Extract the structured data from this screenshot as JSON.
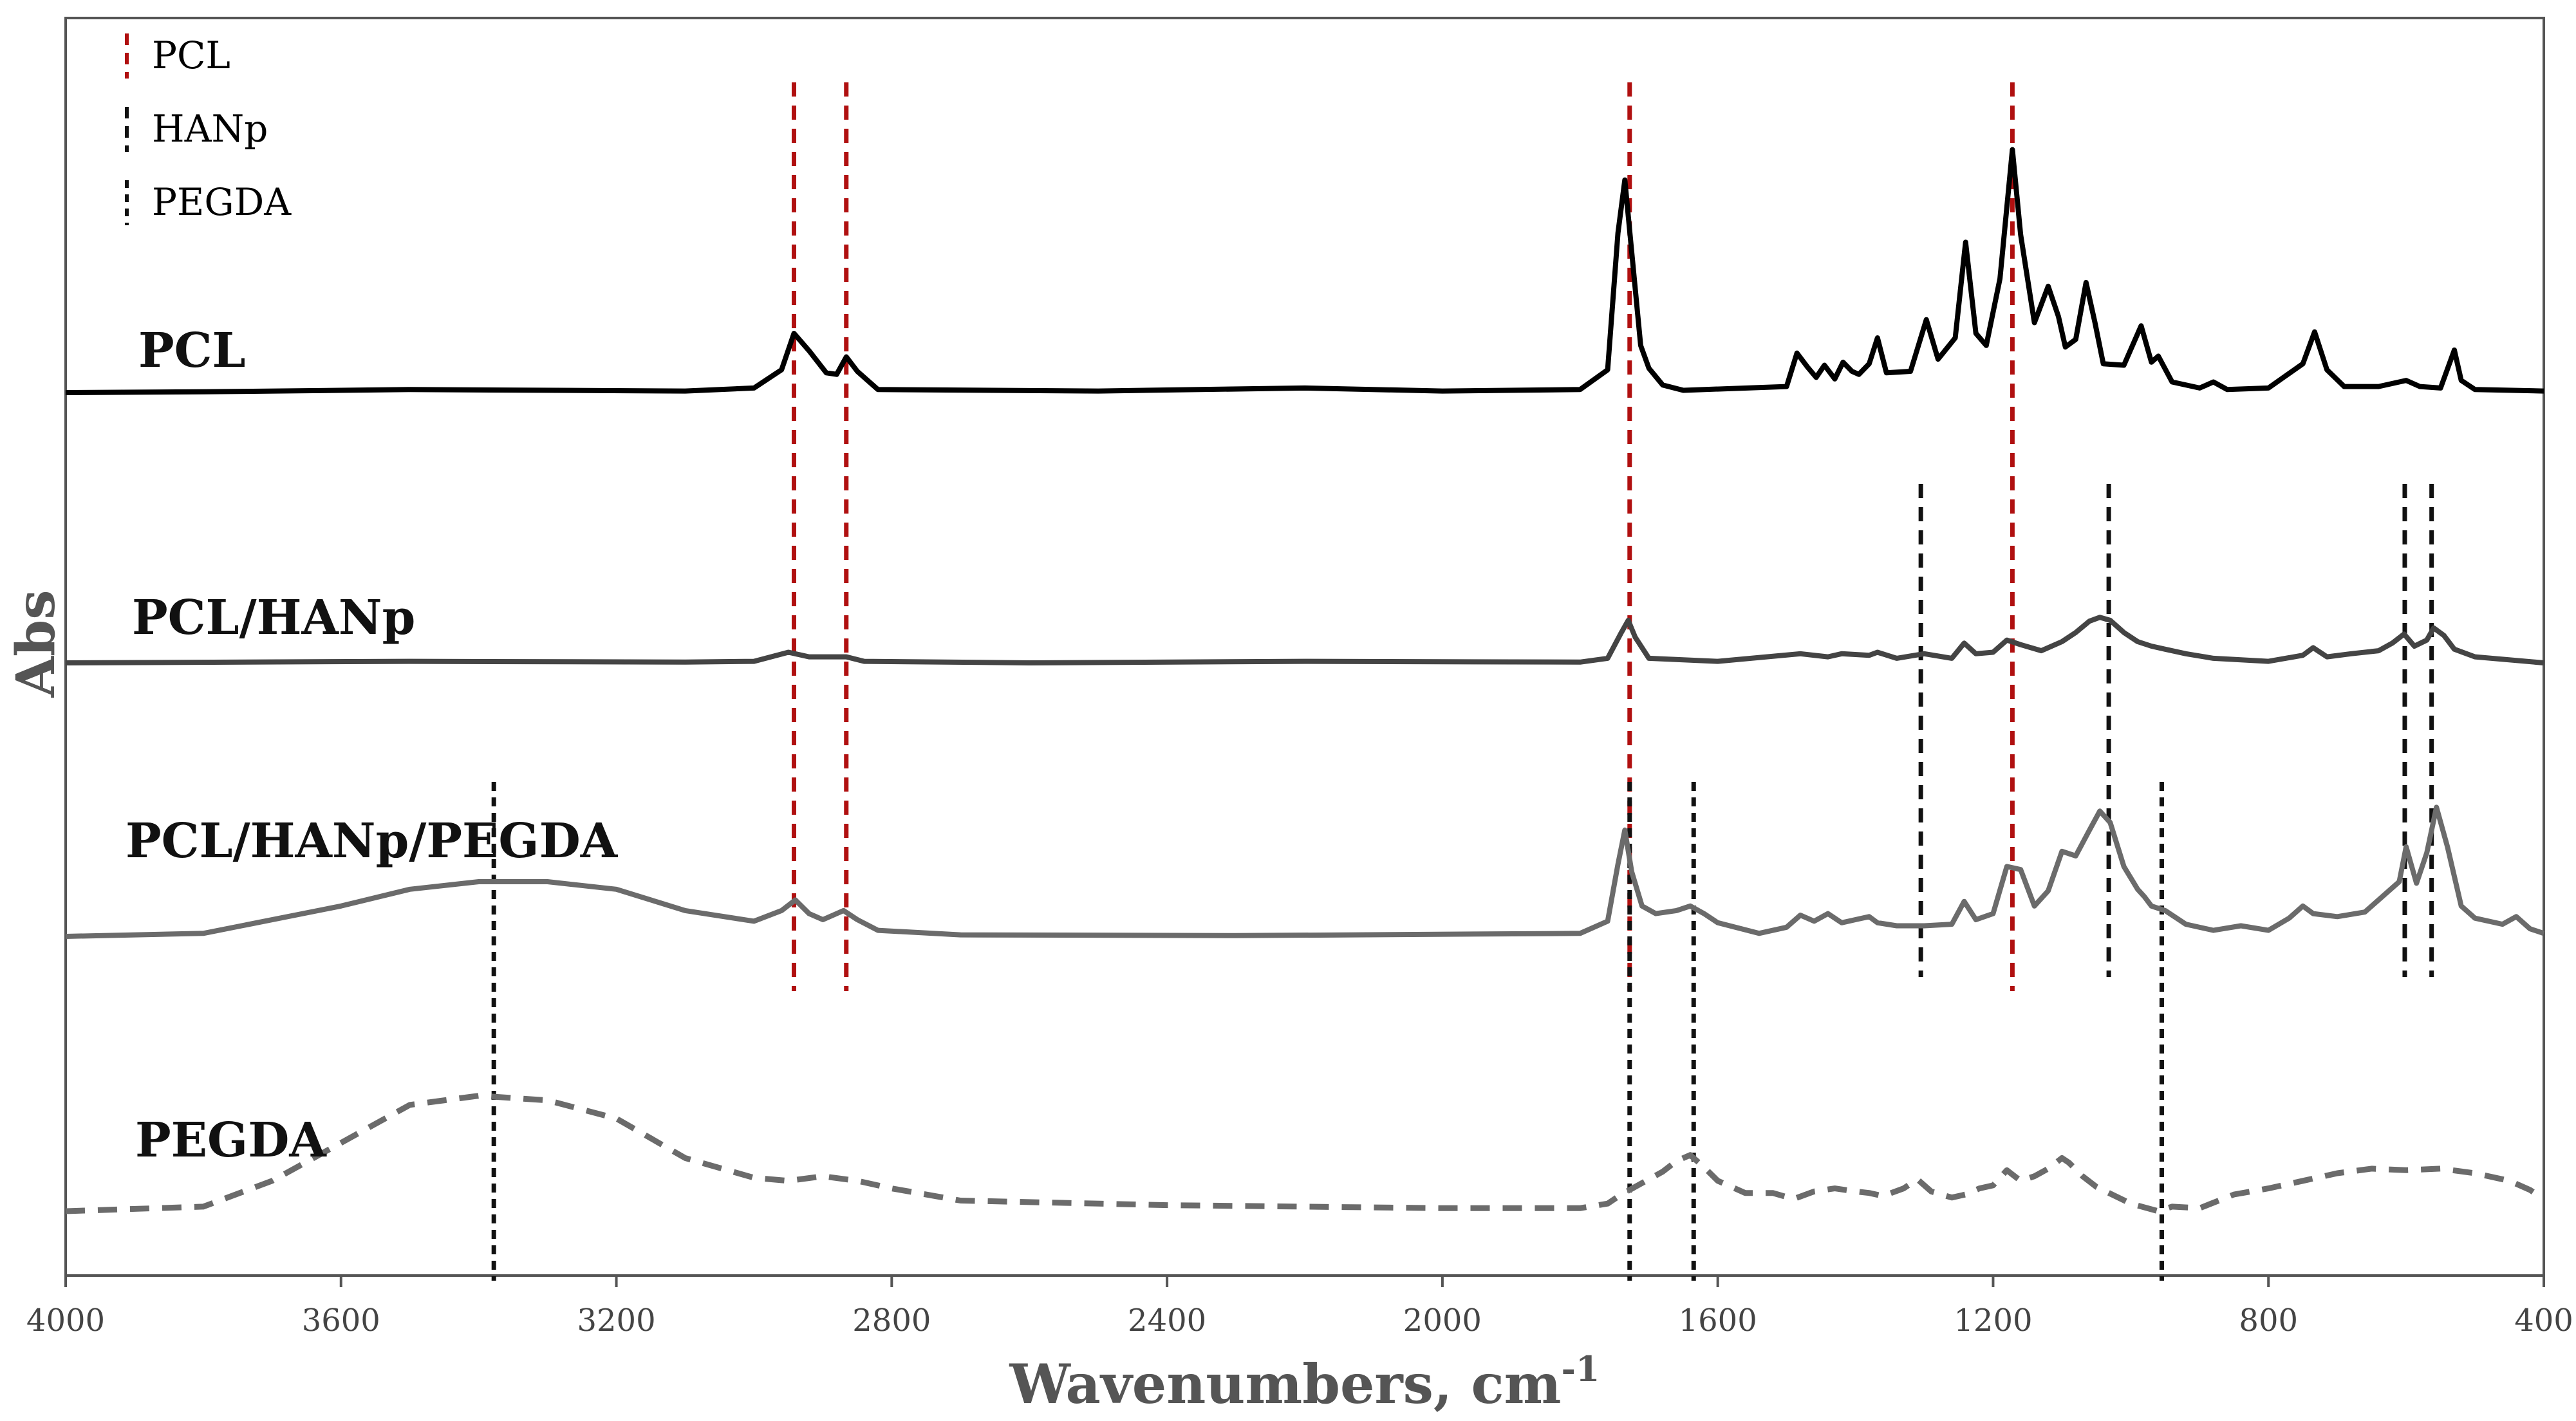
{
  "chart_data": {
    "type": "line",
    "title": "",
    "xlabel": "Wavenumbers, cm",
    "xlabel_superscript": "-1",
    "ylabel": "Abs",
    "xlim": [
      4000,
      400
    ],
    "x_reversed": true,
    "y_ticks_shown": false,
    "grid": false,
    "x_ticks": [
      "4000",
      "3600",
      "3200",
      "2800",
      "2400",
      "2000",
      "1600",
      "1200",
      "800",
      "400"
    ],
    "legend": {
      "placement": "top-left",
      "entries": [
        {
          "label": "PCL",
          "color": "#b01010"
        },
        {
          "label": "HANp",
          "color": "#111111"
        },
        {
          "label": "PEGDA",
          "color": "#111111"
        }
      ]
    },
    "series": [
      {
        "name": "PCL",
        "color": "#000000",
        "style": "solid",
        "baseline": 0,
        "points": [
          [
            4000,
            0
          ],
          [
            3800,
            1
          ],
          [
            3500,
            4
          ],
          [
            3100,
            2
          ],
          [
            3000,
            6
          ],
          [
            2960,
            30
          ],
          [
            2942,
            78
          ],
          [
            2920,
            55
          ],
          [
            2895,
            26
          ],
          [
            2880,
            24
          ],
          [
            2866,
            47
          ],
          [
            2850,
            28
          ],
          [
            2820,
            4
          ],
          [
            2500,
            2
          ],
          [
            2200,
            6
          ],
          [
            2000,
            2
          ],
          [
            1800,
            4
          ],
          [
            1760,
            30
          ],
          [
            1745,
            210
          ],
          [
            1735,
            280
          ],
          [
            1725,
            185
          ],
          [
            1712,
            62
          ],
          [
            1700,
            32
          ],
          [
            1680,
            10
          ],
          [
            1650,
            3
          ],
          [
            1500,
            8
          ],
          [
            1485,
            52
          ],
          [
            1470,
            34
          ],
          [
            1457,
            20
          ],
          [
            1445,
            36
          ],
          [
            1430,
            18
          ],
          [
            1418,
            40
          ],
          [
            1405,
            28
          ],
          [
            1395,
            24
          ],
          [
            1380,
            38
          ],
          [
            1368,
            72
          ],
          [
            1355,
            26
          ],
          [
            1320,
            28
          ],
          [
            1297,
            96
          ],
          [
            1280,
            44
          ],
          [
            1255,
            72
          ],
          [
            1240,
            198
          ],
          [
            1225,
            78
          ],
          [
            1210,
            62
          ],
          [
            1190,
            150
          ],
          [
            1172,
            320
          ],
          [
            1160,
            208
          ],
          [
            1140,
            92
          ],
          [
            1120,
            140
          ],
          [
            1105,
            100
          ],
          [
            1095,
            60
          ],
          [
            1080,
            70
          ],
          [
            1065,
            145
          ],
          [
            1052,
            92
          ],
          [
            1040,
            38
          ],
          [
            1010,
            36
          ],
          [
            985,
            88
          ],
          [
            970,
            40
          ],
          [
            960,
            48
          ],
          [
            940,
            14
          ],
          [
            900,
            6
          ],
          [
            880,
            14
          ],
          [
            860,
            4
          ],
          [
            800,
            6
          ],
          [
            750,
            38
          ],
          [
            733,
            80
          ],
          [
            715,
            30
          ],
          [
            690,
            8
          ],
          [
            640,
            8
          ],
          [
            600,
            16
          ],
          [
            580,
            8
          ],
          [
            550,
            6
          ],
          [
            530,
            56
          ],
          [
            520,
            16
          ],
          [
            500,
            4
          ],
          [
            400,
            2
          ]
        ]
      },
      {
        "name": "PCL/HANp",
        "color": "#444444",
        "style": "solid",
        "baseline": 0,
        "points": [
          [
            4000,
            0
          ],
          [
            3500,
            2
          ],
          [
            3100,
            1
          ],
          [
            3000,
            2
          ],
          [
            2950,
            14
          ],
          [
            2920,
            8
          ],
          [
            2866,
            8
          ],
          [
            2840,
            2
          ],
          [
            2600,
            0
          ],
          [
            2200,
            2
          ],
          [
            1800,
            1
          ],
          [
            1760,
            6
          ],
          [
            1740,
            40
          ],
          [
            1730,
            56
          ],
          [
            1720,
            34
          ],
          [
            1700,
            6
          ],
          [
            1600,
            2
          ],
          [
            1480,
            12
          ],
          [
            1440,
            8
          ],
          [
            1420,
            12
          ],
          [
            1380,
            10
          ],
          [
            1368,
            14
          ],
          [
            1340,
            6
          ],
          [
            1300,
            12
          ],
          [
            1260,
            6
          ],
          [
            1242,
            26
          ],
          [
            1225,
            12
          ],
          [
            1200,
            14
          ],
          [
            1180,
            30
          ],
          [
            1160,
            24
          ],
          [
            1130,
            16
          ],
          [
            1100,
            28
          ],
          [
            1080,
            40
          ],
          [
            1060,
            55
          ],
          [
            1045,
            60
          ],
          [
            1030,
            56
          ],
          [
            1010,
            40
          ],
          [
            990,
            28
          ],
          [
            970,
            22
          ],
          [
            950,
            18
          ],
          [
            920,
            12
          ],
          [
            880,
            6
          ],
          [
            800,
            2
          ],
          [
            750,
            10
          ],
          [
            735,
            20
          ],
          [
            715,
            8
          ],
          [
            680,
            12
          ],
          [
            640,
            16
          ],
          [
            620,
            26
          ],
          [
            603,
            38
          ],
          [
            588,
            22
          ],
          [
            570,
            30
          ],
          [
            560,
            46
          ],
          [
            545,
            36
          ],
          [
            530,
            18
          ],
          [
            500,
            8
          ],
          [
            400,
            0
          ]
        ]
      },
      {
        "name": "PCL/HANp/PEGDA",
        "color": "#6b6b6b",
        "style": "solid",
        "baseline": 0,
        "points": [
          [
            4000,
            0
          ],
          [
            3800,
            4
          ],
          [
            3600,
            40
          ],
          [
            3500,
            62
          ],
          [
            3400,
            72
          ],
          [
            3300,
            72
          ],
          [
            3200,
            62
          ],
          [
            3100,
            34
          ],
          [
            3000,
            20
          ],
          [
            2960,
            34
          ],
          [
            2940,
            48
          ],
          [
            2920,
            30
          ],
          [
            2900,
            22
          ],
          [
            2870,
            34
          ],
          [
            2850,
            22
          ],
          [
            2820,
            8
          ],
          [
            2700,
            2
          ],
          [
            2300,
            1
          ],
          [
            1800,
            4
          ],
          [
            1760,
            20
          ],
          [
            1745,
            95
          ],
          [
            1735,
            140
          ],
          [
            1725,
            85
          ],
          [
            1710,
            40
          ],
          [
            1690,
            30
          ],
          [
            1660,
            34
          ],
          [
            1640,
            40
          ],
          [
            1620,
            30
          ],
          [
            1600,
            18
          ],
          [
            1540,
            4
          ],
          [
            1500,
            12
          ],
          [
            1480,
            28
          ],
          [
            1460,
            20
          ],
          [
            1440,
            30
          ],
          [
            1420,
            18
          ],
          [
            1400,
            22
          ],
          [
            1380,
            26
          ],
          [
            1368,
            18
          ],
          [
            1340,
            14
          ],
          [
            1300,
            14
          ],
          [
            1260,
            16
          ],
          [
            1242,
            46
          ],
          [
            1225,
            22
          ],
          [
            1200,
            30
          ],
          [
            1180,
            92
          ],
          [
            1160,
            88
          ],
          [
            1140,
            40
          ],
          [
            1120,
            60
          ],
          [
            1100,
            112
          ],
          [
            1080,
            106
          ],
          [
            1060,
            140
          ],
          [
            1045,
            165
          ],
          [
            1030,
            150
          ],
          [
            1010,
            92
          ],
          [
            990,
            62
          ],
          [
            980,
            52
          ],
          [
            970,
            40
          ],
          [
            950,
            34
          ],
          [
            920,
            16
          ],
          [
            880,
            8
          ],
          [
            840,
            14
          ],
          [
            800,
            8
          ],
          [
            770,
            24
          ],
          [
            750,
            40
          ],
          [
            735,
            30
          ],
          [
            700,
            26
          ],
          [
            660,
            32
          ],
          [
            630,
            56
          ],
          [
            610,
            72
          ],
          [
            600,
            118
          ],
          [
            585,
            70
          ],
          [
            570,
            110
          ],
          [
            556,
            170
          ],
          [
            540,
            118
          ],
          [
            520,
            40
          ],
          [
            500,
            24
          ],
          [
            460,
            16
          ],
          [
            440,
            26
          ],
          [
            420,
            10
          ],
          [
            400,
            4
          ]
        ]
      },
      {
        "name": "PEGDA",
        "color": "#6b6b6b",
        "style": "dashed",
        "baseline": 0,
        "points": [
          [
            4000,
            0
          ],
          [
            3800,
            6
          ],
          [
            3700,
            40
          ],
          [
            3600,
            90
          ],
          [
            3500,
            140
          ],
          [
            3400,
            152
          ],
          [
            3300,
            146
          ],
          [
            3200,
            122
          ],
          [
            3100,
            70
          ],
          [
            3000,
            44
          ],
          [
            2950,
            40
          ],
          [
            2900,
            46
          ],
          [
            2850,
            40
          ],
          [
            2800,
            30
          ],
          [
            2700,
            14
          ],
          [
            2400,
            8
          ],
          [
            2000,
            4
          ],
          [
            1800,
            4
          ],
          [
            1760,
            10
          ],
          [
            1740,
            22
          ],
          [
            1720,
            32
          ],
          [
            1700,
            42
          ],
          [
            1680,
            52
          ],
          [
            1660,
            66
          ],
          [
            1640,
            74
          ],
          [
            1620,
            58
          ],
          [
            1600,
            40
          ],
          [
            1560,
            24
          ],
          [
            1520,
            24
          ],
          [
            1490,
            16
          ],
          [
            1460,
            26
          ],
          [
            1430,
            30
          ],
          [
            1400,
            26
          ],
          [
            1380,
            24
          ],
          [
            1360,
            20
          ],
          [
            1330,
            30
          ],
          [
            1310,
            42
          ],
          [
            1290,
            26
          ],
          [
            1260,
            18
          ],
          [
            1240,
            22
          ],
          [
            1220,
            30
          ],
          [
            1200,
            34
          ],
          [
            1180,
            54
          ],
          [
            1160,
            40
          ],
          [
            1140,
            46
          ],
          [
            1120,
            56
          ],
          [
            1100,
            70
          ],
          [
            1090,
            64
          ],
          [
            1070,
            46
          ],
          [
            1050,
            32
          ],
          [
            1000,
            10
          ],
          [
            960,
            0
          ],
          [
            940,
            6
          ],
          [
            900,
            4
          ],
          [
            850,
            22
          ],
          [
            800,
            30
          ],
          [
            750,
            40
          ],
          [
            700,
            50
          ],
          [
            650,
            56
          ],
          [
            600,
            54
          ],
          [
            550,
            56
          ],
          [
            500,
            50
          ],
          [
            450,
            40
          ],
          [
            420,
            28
          ],
          [
            400,
            16
          ]
        ]
      }
    ],
    "reference_lines": [
      {
        "group": "PCL",
        "color": "#b01010",
        "x": 2942,
        "from": "PCL",
        "to": "PCL/HANp/PEGDA"
      },
      {
        "group": "PCL",
        "color": "#b01010",
        "x": 2866,
        "from": "PCL",
        "to": "PCL/HANp/PEGDA"
      },
      {
        "group": "PCL",
        "color": "#b01010",
        "x": 1728,
        "from": "PCL",
        "to": "PCL/HANp/PEGDA"
      },
      {
        "group": "PCL",
        "color": "#b01010",
        "x": 1172,
        "from": "PCL",
        "to": "PCL/HANp/PEGDA"
      },
      {
        "group": "HANp",
        "color": "#111111",
        "x": 1305,
        "from": "PCL/HANp",
        "to": "PCL/HANp/PEGDA"
      },
      {
        "group": "HANp",
        "color": "#111111",
        "x": 1032,
        "from": "PCL/HANp",
        "to": "PCL/HANp/PEGDA"
      },
      {
        "group": "HANp",
        "color": "#111111",
        "x": 602,
        "from": "PCL/HANp",
        "to": "PCL/HANp/PEGDA"
      },
      {
        "group": "HANp",
        "color": "#111111",
        "x": 563,
        "from": "PCL/HANp",
        "to": "PCL/HANp/PEGDA"
      },
      {
        "group": "PEGDA",
        "color": "#111111",
        "x": 3378,
        "from": "PCL/HANp/PEGDA",
        "to": "PEGDA"
      },
      {
        "group": "PEGDA",
        "color": "#111111",
        "x": 1728,
        "from": "PCL/HANp/PEGDA",
        "to": "PEGDA"
      },
      {
        "group": "PEGDA",
        "color": "#111111",
        "x": 1635,
        "from": "PCL/HANp/PEGDA",
        "to": "PEGDA"
      },
      {
        "group": "PEGDA",
        "color": "#111111",
        "x": 955,
        "from": "PCL/HANp/PEGDA",
        "to": "PEGDA"
      }
    ]
  }
}
